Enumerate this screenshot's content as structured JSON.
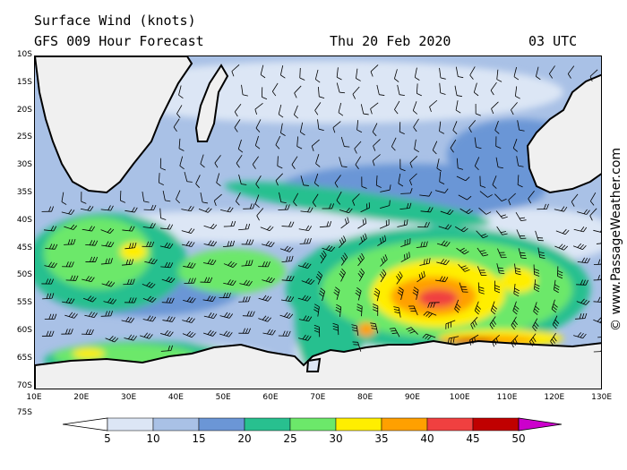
{
  "header": {
    "title": "Surface Wind (knots)",
    "subtitle": "GFS 009 Hour Forecast",
    "date": "Thu 20 Feb 2020",
    "time": "03 UTC"
  },
  "credit": "© www.PassageWeather.com",
  "lat_labels": [
    "10S",
    "15S",
    "20S",
    "25S",
    "30S",
    "35S",
    "40S",
    "45S",
    "50S",
    "55S",
    "60S",
    "65S",
    "70S",
    "75S"
  ],
  "lon_labels": [
    "10E",
    "20E",
    "30E",
    "40E",
    "50E",
    "60E",
    "70E",
    "80E",
    "90E",
    "100E",
    "110E",
    "120E",
    "130E"
  ],
  "legend": {
    "labels": [
      "5",
      "10",
      "15",
      "20",
      "25",
      "30",
      "35",
      "40",
      "45",
      "50"
    ],
    "colors": [
      "#ffffff",
      "#dce6f5",
      "#a9c1e6",
      "#6b96d6",
      "#28c08f",
      "#6ce86a",
      "#ffee00",
      "#ffa000",
      "#f04040",
      "#c00000",
      "#cc00cc"
    ]
  },
  "colors": {
    "land": "#f0f0f0",
    "calm": "#dce6f5",
    "light": "#a9c1e6",
    "moderate": "#6b96d6",
    "fresh": "#28c08f",
    "strong": "#6ce86a",
    "gale": "#ffee00",
    "severe": "#ffa000",
    "storm": "#f04040"
  }
}
